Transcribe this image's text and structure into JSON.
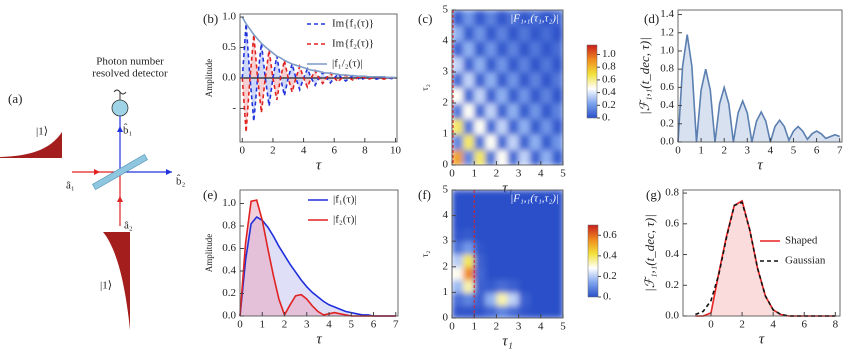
{
  "diagram": {
    "panel_label": "(a)",
    "detector_label": [
      "Photon number",
      "resolved detector"
    ],
    "input_state_1": "|1⟩",
    "input_state_2": "|1⟩",
    "mode_a1": "â₁",
    "mode_a2": "â₂",
    "mode_b1": "b̂₁",
    "mode_b2": "b̂₂"
  },
  "chart_data": [
    {
      "type": "line",
      "panel_label": "(b)",
      "xlabel": "τ",
      "ylabel": "Amplitude",
      "legend": "upper right",
      "zero_line": true,
      "xlim": [
        -0.15,
        10.1
      ],
      "ylim": [
        -1.05,
        1.05
      ],
      "xticks": [
        0,
        2,
        4,
        6,
        8,
        10
      ],
      "yticks": [
        {
          "value": 1,
          "label": "1.0"
        },
        0.5,
        {
          "value": 0,
          "label": "0.0"
        },
        {
          "value": -0.5,
          "label": "-"
        }
      ],
      "x": [
        0,
        0.25,
        0.5,
        0.75,
        1,
        1.25,
        1.5,
        1.75,
        2,
        2.25,
        2.5,
        2.75,
        3,
        3.25,
        3.5,
        3.75,
        4,
        4.25,
        4.5,
        4.75,
        5,
        5.25,
        5.5,
        5.75,
        6,
        6.25,
        6.5,
        6.75,
        7,
        7.25,
        7.5,
        7.75,
        8,
        8.25,
        8.5,
        8.75,
        9,
        9.25,
        9.5,
        9.75,
        10
      ],
      "series": [
        {
          "name": "Im{f₁(τ)}",
          "color": "#2233dd",
          "fill": "#aab8f0",
          "dash": true,
          "values": [
            0,
            0.89,
            0,
            -0.71,
            0,
            0.57,
            0,
            -0.46,
            0,
            0.36,
            0,
            -0.29,
            0,
            0.23,
            0,
            -0.19,
            0,
            0.15,
            0,
            -0.12,
            0,
            0.09,
            0,
            -0.08,
            0,
            0.06,
            0,
            -0.05,
            0,
            0.04,
            0,
            -0.03,
            0,
            0.02,
            0,
            -0.02,
            0,
            0.02,
            0,
            -0.01,
            0
          ]
        },
        {
          "name": "Im{f₂(τ)}",
          "color": "#e02222",
          "fill": "#f4aaaa",
          "dash": true,
          "values": [
            0,
            -0.89,
            0,
            0.71,
            0,
            -0.57,
            0,
            0.46,
            0,
            -0.36,
            0,
            0.29,
            0,
            -0.23,
            0,
            0.19,
            0,
            -0.15,
            0,
            0.12,
            0,
            -0.09,
            0,
            0.08,
            0,
            -0.06,
            0,
            0.05,
            0,
            -0.04,
            0,
            0.03,
            0,
            -0.02,
            0,
            0.02,
            0,
            -0.02,
            0,
            0.01,
            0
          ]
        },
        {
          "name": "|f₁/₂(τ)|",
          "color": "#7f9cc8",
          "dash": false,
          "values": [
            1,
            0.89,
            0.8,
            0.71,
            0.64,
            0.57,
            0.51,
            0.46,
            0.41,
            0.36,
            0.33,
            0.29,
            0.26,
            0.23,
            0.21,
            0.19,
            0.17,
            0.15,
            0.13,
            0.12,
            0.11,
            0.09,
            0.08,
            0.08,
            0.07,
            0.06,
            0.05,
            0.05,
            0.04,
            0.04,
            0.03,
            0.03,
            0.03,
            0.02,
            0.02,
            0.02,
            0.02,
            0.02,
            0.01,
            0.01,
            0.01
          ]
        }
      ]
    },
    {
      "type": "heatmap",
      "panel_label": "(c)",
      "title": "|F₁,₁(τ₁,τ₂)|",
      "xlabel": "τ₁",
      "ylabel": "τ₂",
      "xlim": [
        0,
        5
      ],
      "ylim": [
        0,
        5
      ],
      "xticks": [
        0,
        1,
        2,
        3,
        4,
        5
      ],
      "yticks": [
        0,
        1,
        2,
        3,
        4,
        5
      ],
      "marker_x": 0.05,
      "marker_color": "#e02222",
      "colormap": [
        "#2a4fc8",
        "#7ea4ee",
        "#ffffff",
        "#f2e23a",
        "#f08a1e",
        "#c81e1e"
      ],
      "zlim": [
        0,
        1.15
      ],
      "zticks": [
        {
          "value": 0,
          "label": "0."
        },
        0.2,
        0.4,
        0.6,
        0.8,
        {
          "value": 1,
          "label": "1.0"
        }
      ],
      "x": [
        0.25,
        0.75,
        1.25,
        1.75,
        2.25,
        2.75,
        3.25,
        3.75,
        4.25,
        4.75
      ],
      "y": [
        0.25,
        0.75,
        1.25,
        1.75,
        2.25,
        2.75,
        3.25,
        3.75,
        4.25,
        4.75
      ],
      "z": [
        [
          0.86,
          0.15,
          0.64,
          0.11,
          0.47,
          0.08,
          0.35,
          0.06,
          0.26,
          0.04
        ],
        [
          0.15,
          0.64,
          0.11,
          0.47,
          0.08,
          0.35,
          0.06,
          0.26,
          0.04,
          0.19
        ],
        [
          0.64,
          0.11,
          0.47,
          0.08,
          0.35,
          0.06,
          0.26,
          0.04,
          0.19,
          0.03
        ],
        [
          0.11,
          0.47,
          0.08,
          0.35,
          0.06,
          0.26,
          0.04,
          0.19,
          0.03,
          0.14
        ],
        [
          0.47,
          0.08,
          0.35,
          0.06,
          0.26,
          0.04,
          0.19,
          0.03,
          0.14,
          0.02
        ],
        [
          0.08,
          0.35,
          0.06,
          0.26,
          0.04,
          0.19,
          0.03,
          0.14,
          0.02,
          0.11
        ],
        [
          0.35,
          0.06,
          0.26,
          0.04,
          0.19,
          0.03,
          0.14,
          0.02,
          0.11,
          0.02
        ],
        [
          0.06,
          0.26,
          0.04,
          0.19,
          0.03,
          0.14,
          0.02,
          0.11,
          0.02,
          0.08
        ],
        [
          0.26,
          0.04,
          0.19,
          0.03,
          0.14,
          0.02,
          0.11,
          0.02,
          0.08,
          0.01
        ],
        [
          0.04,
          0.19,
          0.03,
          0.14,
          0.02,
          0.11,
          0.02,
          0.08,
          0.01,
          0.06
        ]
      ]
    },
    {
      "type": "line",
      "panel_label": "(d)",
      "xlabel": "τ",
      "ylabel": "|ℱ₁,₁(t_dec, τ)|",
      "xlim": [
        0,
        7.1
      ],
      "ylim": [
        0,
        1.45
      ],
      "xticks": [
        0,
        1,
        2,
        3,
        4,
        5,
        6,
        7
      ],
      "yticks": [
        {
          "value": 0,
          "label": "0.0"
        },
        0.2,
        0.4,
        0.6,
        0.8,
        {
          "value": 1,
          "label": "1.0"
        },
        1.2,
        1.4
      ],
      "x": [
        0,
        0.2,
        0.4,
        0.6,
        0.8,
        1,
        1.2,
        1.4,
        1.6,
        1.8,
        2,
        2.2,
        2.4,
        2.6,
        2.8,
        3,
        3.2,
        3.4,
        3.6,
        3.8,
        4,
        4.2,
        4.4,
        4.6,
        4.8,
        5,
        5.2,
        5.4,
        5.6,
        5.8,
        6,
        6.2,
        6.4,
        6.6,
        6.8,
        7
      ],
      "series": [
        {
          "color": "#5b7fb0",
          "fill": "#b8c8e2",
          "dash": false,
          "values": [
            0,
            0.83,
            1.18,
            0.83,
            0,
            0.57,
            0.8,
            0.57,
            0,
            0.42,
            0.6,
            0.42,
            0,
            0.32,
            0.45,
            0.32,
            0,
            0.23,
            0.33,
            0.23,
            0,
            0.17,
            0.24,
            0.17,
            0.02,
            0.12,
            0.17,
            0.12,
            0.03,
            0.09,
            0.12,
            0.09,
            0.04,
            0.06,
            0.08,
            0.06
          ]
        }
      ]
    },
    {
      "type": "line",
      "panel_label": "(e)",
      "xlabel": "τ",
      "ylabel": "Amplitude",
      "legend": "upper right",
      "xlim": [
        0,
        7.1
      ],
      "ylim": [
        0,
        1.12
      ],
      "xticks": [
        0,
        1,
        2,
        3,
        4,
        5,
        6,
        7
      ],
      "yticks": [
        {
          "value": 0,
          "label": "0.0"
        },
        0.2,
        0.4,
        0.6,
        0.8,
        {
          "value": 1,
          "label": "1.0"
        }
      ],
      "x": [
        0,
        0.25,
        0.5,
        0.75,
        1,
        1.25,
        1.5,
        1.75,
        2,
        2.25,
        2.5,
        2.75,
        3,
        3.25,
        3.5,
        3.75,
        4,
        4.25,
        4.5,
        4.75,
        5,
        5.25,
        5.5,
        5.75,
        6,
        6.25,
        6.5,
        6.75,
        7
      ],
      "series": [
        {
          "name": "|f₁(τ)|",
          "color": "#1f2fdd",
          "fill": "#c4c6f0",
          "dash": false,
          "values": [
            0,
            0.5,
            0.82,
            0.88,
            0.85,
            0.79,
            0.71,
            0.62,
            0.54,
            0.46,
            0.39,
            0.32,
            0.26,
            0.21,
            0.17,
            0.13,
            0.1,
            0.08,
            0.06,
            0.04,
            0.03,
            0.02,
            0.01,
            0.01,
            0,
            0,
            0,
            0,
            0
          ]
        },
        {
          "name": "|f₂(τ)|",
          "color": "#e02222",
          "fill": "#e8a8c0",
          "dash": false,
          "values": [
            0,
            0.65,
            1.02,
            1.03,
            0.85,
            0.6,
            0.36,
            0.15,
            0.01,
            0.1,
            0.18,
            0.19,
            0.15,
            0.09,
            0.04,
            0.01,
            0.02,
            0.03,
            0.02,
            0.01,
            0,
            0,
            0,
            0,
            0,
            0,
            0,
            0,
            0
          ]
        }
      ]
    },
    {
      "type": "heatmap",
      "panel_label": "(f)",
      "title": "|F₁,₁(τ₁,τ₂)|",
      "xlabel": "τ₁",
      "ylabel": "τ₂",
      "xlim": [
        0,
        5
      ],
      "ylim": [
        0,
        5
      ],
      "xticks": [
        0,
        1,
        2,
        3,
        4,
        5
      ],
      "yticks": [
        0,
        1,
        2,
        3,
        4,
        5
      ],
      "marker_x": 1,
      "marker_color": "#e02222",
      "colormap": [
        "#2a4fc8",
        "#7ea4ee",
        "#ffffff",
        "#f2e23a",
        "#f08a1e",
        "#c81e1e"
      ],
      "zlim": [
        0,
        0.7
      ],
      "zticks": [
        {
          "value": 0,
          "label": "0."
        },
        0.2,
        0.4,
        0.6
      ],
      "x": [
        0.25,
        0.75,
        1.25,
        1.75,
        2.25,
        2.75,
        3.25,
        3.75,
        4.25,
        4.75
      ],
      "y": [
        0.25,
        0.75,
        1.25,
        1.75,
        2.25,
        2.75,
        3.25,
        3.75,
        4.25,
        4.75
      ],
      "z": [
        [
          0.01,
          0.01,
          0.01,
          0.04,
          0.09,
          0.05,
          0.01,
          0,
          0,
          0
        ],
        [
          0.05,
          0.09,
          0.03,
          0.16,
          0.34,
          0.21,
          0.03,
          0,
          0,
          0
        ],
        [
          0.17,
          0.34,
          0.03,
          0.02,
          0.05,
          0.03,
          0,
          0,
          0,
          0
        ],
        [
          0.29,
          0.56,
          0.04,
          0,
          0,
          0,
          0,
          0,
          0,
          0
        ],
        [
          0.2,
          0.4,
          0.03,
          0,
          0,
          0,
          0,
          0,
          0,
          0
        ],
        [
          0.06,
          0.12,
          0.01,
          0,
          0,
          0,
          0,
          0,
          0,
          0
        ],
        [
          0.01,
          0.02,
          0,
          0,
          0,
          0,
          0,
          0,
          0,
          0
        ],
        [
          0,
          0,
          0,
          0,
          0,
          0,
          0,
          0,
          0,
          0
        ],
        [
          0,
          0,
          0,
          0,
          0,
          0,
          0,
          0,
          0,
          0
        ],
        [
          0,
          0,
          0,
          0,
          0,
          0,
          0,
          0,
          0,
          0
        ]
      ]
    },
    {
      "type": "line",
      "panel_label": "(g)",
      "xlabel": "τ",
      "ylabel": "|ℱ₁,₁(t_dec, τ)|",
      "legend": "right",
      "xlim": [
        -1.8,
        8.3
      ],
      "ylim": [
        0,
        0.82
      ],
      "xticks": [
        0,
        2,
        4,
        6,
        8
      ],
      "yticks": [
        {
          "value": 0,
          "label": "0.0"
        },
        0.2,
        0.4,
        0.6,
        0.8
      ],
      "x": [
        -1,
        -0.5,
        0,
        0.5,
        1,
        1.5,
        2,
        2.5,
        3,
        3.5,
        4,
        4.5,
        5,
        5.5,
        6,
        6.5,
        7,
        7.5,
        8
      ],
      "series": [
        {
          "name": "Shaped",
          "color": "#e82020",
          "fill": "#f8c0c0",
          "dash": false,
          "values": [
            0,
            0,
            0.02,
            0.28,
            0.52,
            0.72,
            0.75,
            0.56,
            0.31,
            0.13,
            0.04,
            0.01,
            0,
            0,
            0,
            0,
            0,
            0,
            0
          ]
        },
        {
          "name": "Gaussian",
          "color": "#111111",
          "dash": true,
          "values": [
            0.01,
            0.03,
            0.1,
            0.27,
            0.51,
            0.72,
            0.74,
            0.56,
            0.31,
            0.13,
            0.04,
            0.01,
            0,
            0,
            0,
            0,
            0,
            0,
            0
          ]
        }
      ]
    }
  ]
}
